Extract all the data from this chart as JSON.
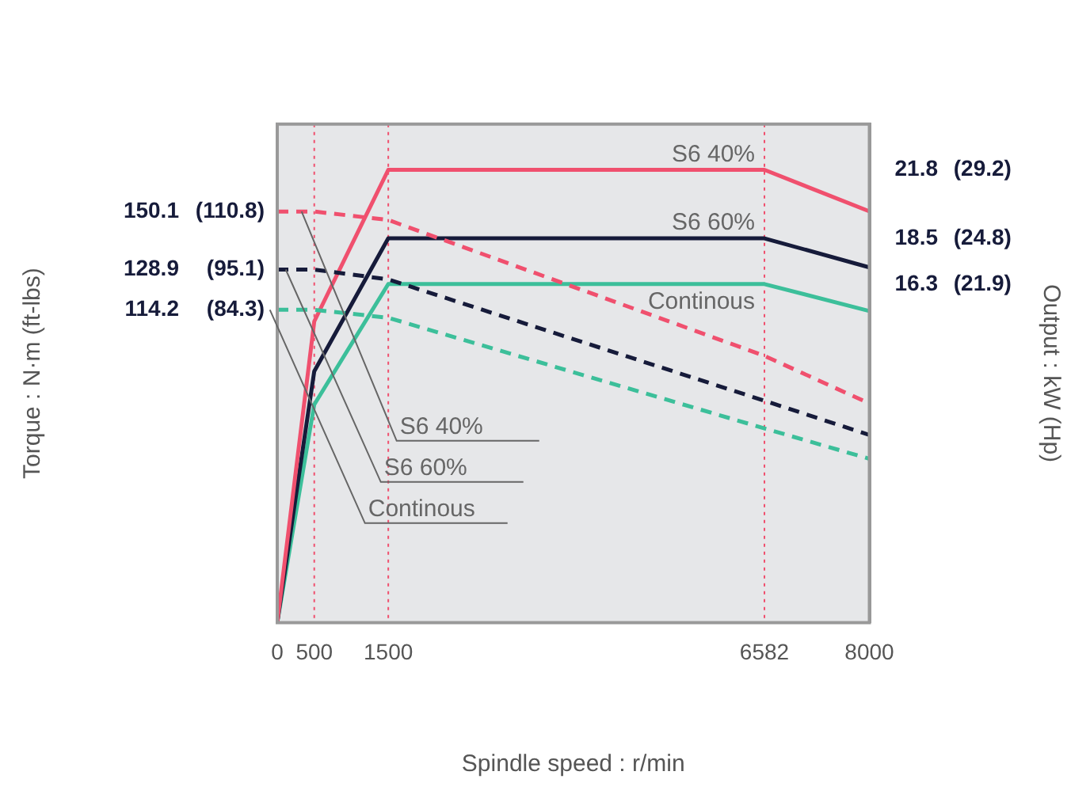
{
  "chart_data": {
    "type": "line",
    "xlabel": "Spindle speed : r/min",
    "ylabel": "Torque : N·m (ft-lbs)",
    "y2label": "Output : kW (Hp)",
    "x": [
      0,
      500,
      1500,
      6582,
      8000
    ],
    "xlim": [
      0,
      8000
    ],
    "xticks": [
      0,
      500,
      1500,
      6582,
      8000
    ],
    "ylim": [
      0,
      182
    ],
    "yticks": [
      114.2,
      128.9,
      150.1
    ],
    "y2lim": [
      0,
      24
    ],
    "y2ticks": [
      16.3,
      18.5,
      21.8
    ],
    "annotations": [
      "(84.3)",
      "(95.1)",
      "(110.8)",
      "(21.9)",
      "(24.8)",
      "(29.2)"
    ],
    "series": [
      {
        "name": "S6 40%",
        "color": "#f0506e",
        "axis": "y",
        "line_style": "dashed",
        "values": [
          150.1,
          150.1,
          147,
          97.4,
          80
        ]
      },
      {
        "name": "S6 60%",
        "color": "#161b3a",
        "axis": "y",
        "line_style": "dashed",
        "values": [
          128.9,
          128.9,
          125.3,
          81,
          68.5
        ]
      },
      {
        "name": "Continous",
        "color": "#3cbf9a",
        "axis": "y",
        "line_style": "dashed",
        "values": [
          114.2,
          114.2,
          111.3,
          70.9,
          59.8
        ]
      },
      {
        "name": "S6 40%",
        "color": "#f0506e",
        "axis": "y2",
        "line_style": "solid",
        "values": [
          0,
          14.5,
          21.8,
          21.8,
          19.8
        ]
      },
      {
        "name": "S6 60%",
        "color": "#161b3a",
        "axis": "y2",
        "line_style": "solid",
        "values": [
          0,
          12.1,
          18.5,
          18.5,
          17.1
        ]
      },
      {
        "name": "Continous",
        "color": "#3cbf9a",
        "axis": "y2",
        "line_style": "solid",
        "values": [
          0,
          10.5,
          16.3,
          16.3,
          15
        ]
      }
    ],
    "ref_lines": [
      {
        "axis": "x",
        "value": 500,
        "color": "#f0506e",
        "line_style": "dotted"
      },
      {
        "axis": "x",
        "value": 1500,
        "color": "#f0506e",
        "line_style": "dotted"
      },
      {
        "axis": "x",
        "value": 6582,
        "color": "#f0506e",
        "line_style": "dotted"
      }
    ],
    "legend": false
  }
}
